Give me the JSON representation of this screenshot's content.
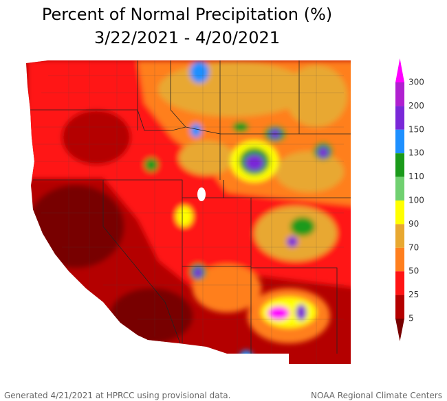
{
  "title": {
    "line1": "Percent of Normal Precipitation (%)",
    "line2": "3/22/2021 - 4/20/2021"
  },
  "legend": {
    "labels": [
      300,
      200,
      150,
      130,
      110,
      100,
      90,
      70,
      50,
      25,
      5
    ],
    "colors": [
      "#ff00ff",
      "#b020d0",
      "#7a28d8",
      "#1e90ff",
      "#1a9a1a",
      "#70d070",
      "#ffff00",
      "#e8a830",
      "#ff7f1e",
      "#ff1414",
      "#b40000",
      "#780000"
    ]
  },
  "footer": {
    "left": "Generated 4/21/2021 at HPRCC using provisional data.",
    "right": "NOAA Regional Climate Centers"
  }
}
